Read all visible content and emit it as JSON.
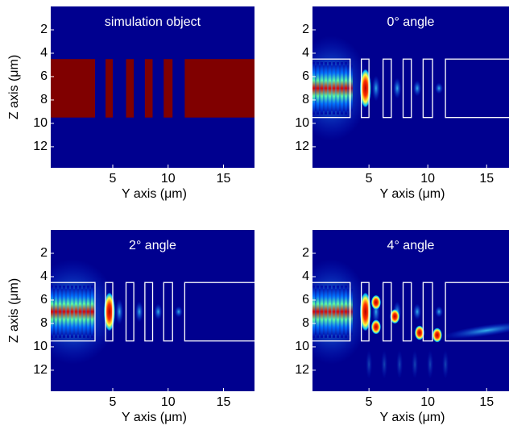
{
  "chart_data": [
    {
      "type": "image",
      "title": "simulation object",
      "xlabel": "Y axis (μm)",
      "ylabel": "Z axis (μm)",
      "xlim": [
        -0.6,
        17.8
      ],
      "ylim": [
        13.8,
        0
      ],
      "xticks": [
        5,
        10,
        15
      ],
      "yticks": [
        2,
        4,
        6,
        8,
        10,
        12
      ]
    },
    {
      "type": "image",
      "title": "0° angle",
      "xlabel": "Y axis (μm)",
      "xlim": [
        0.2,
        16.9
      ],
      "ylim": [
        13.8,
        0
      ],
      "xticks": [
        5,
        10,
        15
      ],
      "yticks": [
        2,
        4,
        6,
        8,
        10,
        12
      ]
    },
    {
      "type": "image",
      "title": "2° angle",
      "xlabel": "Y axis (μm)",
      "ylabel": "Z axis (μm)",
      "xlim": [
        -0.6,
        17.8
      ],
      "ylim": [
        13.8,
        0
      ],
      "xticks": [
        5,
        10,
        15
      ],
      "yticks": [
        2,
        4,
        6,
        8,
        10,
        12
      ]
    },
    {
      "type": "image",
      "title": "4° angle",
      "xlabel": "Y axis (μm)",
      "xlim": [
        0.2,
        16.9
      ],
      "ylim": [
        13.8,
        0
      ],
      "xticks": [
        5,
        10,
        15
      ],
      "yticks": [
        2,
        4,
        6,
        8,
        10,
        12
      ]
    }
  ]
}
